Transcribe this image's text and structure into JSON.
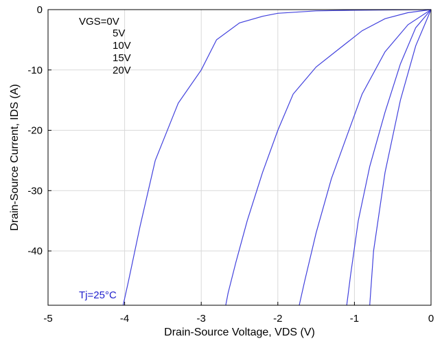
{
  "chart_data": {
    "type": "line",
    "xlabel": "Drain-Source Voltage, VDS (V)",
    "ylabel": "Drain-Source Current, IDS (A)",
    "xlim": [
      -5,
      0
    ],
    "ylim": [
      -49,
      0
    ],
    "xticks": [
      "-5",
      "-4",
      "-3",
      "-2",
      "-1",
      "0"
    ],
    "xtick_values": [
      -5,
      -4,
      -3,
      -2,
      -1,
      0
    ],
    "yticks": [
      "0",
      "-10",
      "-20",
      "-30",
      "-40"
    ],
    "ytick_values": [
      0,
      -10,
      -20,
      -30,
      -40
    ],
    "grid": true,
    "legend_placement": "top-left",
    "legend": [
      "VGS=0V",
      "5V",
      "10V",
      "15V",
      "20V"
    ],
    "annotation": "Tj=25°C",
    "line_color": "#4040dd",
    "annotation_color": "#2020cc",
    "series": [
      {
        "name": "VGS=0V",
        "x": [
          0,
          -0.5,
          -1.0,
          -1.5,
          -2.0,
          -2.2,
          -2.5,
          -2.8,
          -3.0,
          -3.3,
          -3.6,
          -3.8,
          -3.95,
          -4.02
        ],
        "values": [
          0,
          -0.05,
          -0.1,
          -0.2,
          -0.6,
          -1.1,
          -2.2,
          -5.0,
          -10.0,
          -15.5,
          -25.0,
          -36.0,
          -45.0,
          -49.0
        ]
      },
      {
        "name": "5V",
        "x": [
          0,
          -0.3,
          -0.6,
          -0.9,
          -1.2,
          -1.5,
          -1.8,
          -2.0,
          -2.2,
          -2.4,
          -2.55,
          -2.65,
          -2.68
        ],
        "values": [
          0,
          -0.5,
          -1.5,
          -3.5,
          -6.5,
          -9.5,
          -14.0,
          -20.0,
          -27.0,
          -35.0,
          -42.0,
          -47.0,
          -49.0
        ]
      },
      {
        "name": "10V",
        "x": [
          0,
          -0.3,
          -0.6,
          -0.9,
          -1.1,
          -1.3,
          -1.5,
          -1.65,
          -1.72
        ],
        "values": [
          0,
          -2.5,
          -7.0,
          -14.0,
          -21.0,
          -28.0,
          -37.0,
          -45.0,
          -49.0
        ]
      },
      {
        "name": "15V",
        "x": [
          0,
          -0.2,
          -0.4,
          -0.6,
          -0.8,
          -0.95,
          -1.05,
          -1.1
        ],
        "values": [
          0,
          -3.0,
          -9.0,
          -17.0,
          -26.0,
          -35.0,
          -44.0,
          -49.0
        ]
      },
      {
        "name": "20V",
        "x": [
          0,
          -0.2,
          -0.4,
          -0.6,
          -0.75,
          -0.8
        ],
        "values": [
          0,
          -6.0,
          -15.0,
          -27.0,
          -40.0,
          -49.0
        ]
      }
    ]
  }
}
